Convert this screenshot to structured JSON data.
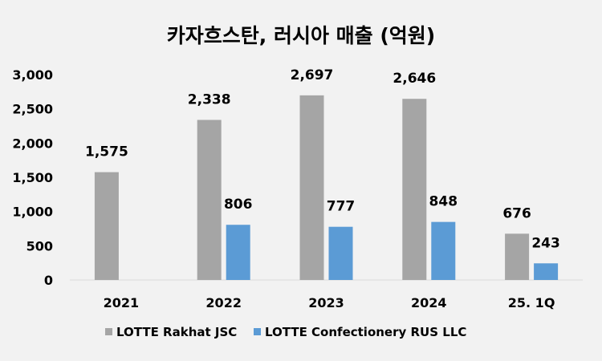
{
  "chart_data": {
    "type": "bar",
    "title": "카자흐스탄, 러시아 매출 (억원)",
    "categories": [
      "2021",
      "2022",
      "2023",
      "2024",
      "25. 1Q"
    ],
    "series": [
      {
        "name": "LOTTE Rakhat JSC",
        "color": "#a5a5a5",
        "values": [
          1575,
          2338,
          2697,
          2646,
          676
        ],
        "labels": [
          "1,575",
          "2,338",
          "2,697",
          "2,646",
          "676"
        ]
      },
      {
        "name": "LOTTE Confectionery RUS LLC",
        "color": "#5b9bd5",
        "values": [
          null,
          806,
          777,
          848,
          243
        ],
        "labels": [
          "",
          "806",
          "777",
          "848",
          "243"
        ]
      }
    ],
    "ylim": [
      0,
      3000
    ],
    "yticks": [
      0,
      500,
      1000,
      1500,
      2000,
      2500,
      3000
    ],
    "ytick_labels": [
      "0",
      "500",
      "1,000",
      "1,500",
      "2,000",
      "2,500",
      "3,000"
    ],
    "grid": false,
    "legend_position": "bottom"
  }
}
